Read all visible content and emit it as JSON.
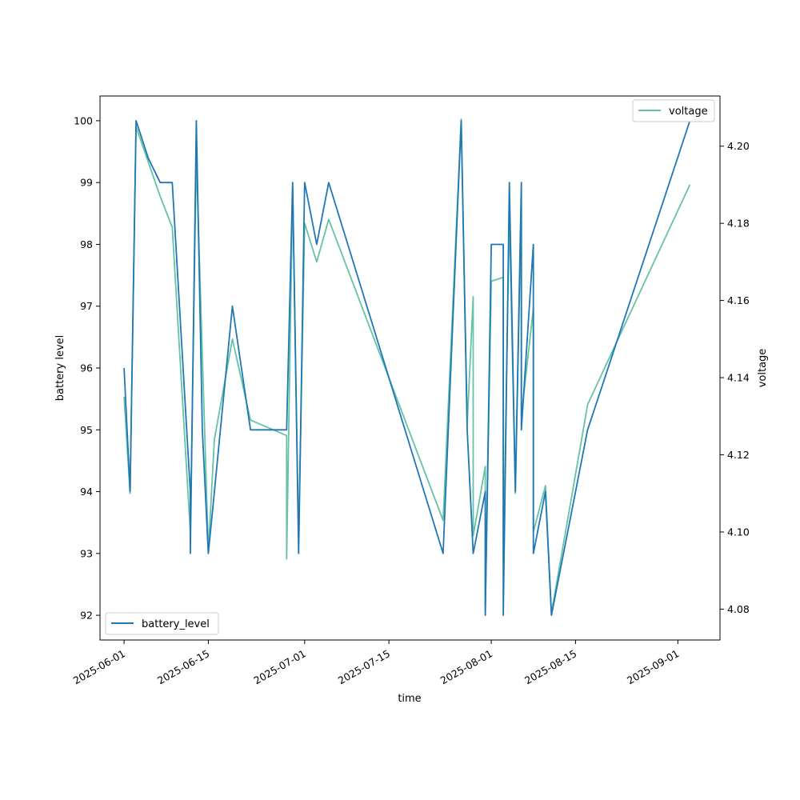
{
  "chart_data": {
    "type": "line",
    "xlabel": "time",
    "ylabel_left": "battery level",
    "ylabel_right": "voltage",
    "x_ticks": [
      "2025-06-01",
      "2025-06-15",
      "2025-07-01",
      "2025-07-15",
      "2025-08-01",
      "2025-08-15",
      "2025-09-01"
    ],
    "y_left_ticks": [
      92,
      93,
      94,
      95,
      96,
      97,
      98,
      99,
      100
    ],
    "y_right_ticks": [
      "4.08",
      "4.10",
      "4.12",
      "4.14",
      "4.16",
      "4.18",
      "4.20"
    ],
    "y_left_range": [
      91.6,
      100.4
    ],
    "y_right_range": [
      4.072,
      4.213
    ],
    "x_range": [
      "2025-05-28",
      "2025-09-08"
    ],
    "grid": false,
    "series": [
      {
        "name": "battery_level",
        "axis": "left",
        "color": "#1f77b4",
        "legend_position": "lower-left",
        "points": [
          [
            "2025-06-01",
            96
          ],
          [
            "2025-06-02",
            94
          ],
          [
            "2025-06-03",
            100
          ],
          [
            "2025-06-05",
            99.4
          ],
          [
            "2025-06-07",
            99
          ],
          [
            "2025-06-09",
            99
          ],
          [
            "2025-06-12",
            94
          ],
          [
            "2025-06-12",
            93
          ],
          [
            "2025-06-13",
            100
          ],
          [
            "2025-06-14",
            95
          ],
          [
            "2025-06-15",
            93
          ],
          [
            "2025-06-16",
            94
          ],
          [
            "2025-06-19",
            97
          ],
          [
            "2025-06-22",
            95
          ],
          [
            "2025-06-27",
            95
          ],
          [
            "2025-06-28",
            95
          ],
          [
            "2025-06-29",
            99
          ],
          [
            "2025-06-30",
            93
          ],
          [
            "2025-07-01",
            99
          ],
          [
            "2025-07-03",
            98
          ],
          [
            "2025-07-05",
            99
          ],
          [
            "2025-07-24",
            93
          ],
          [
            "2025-07-27",
            100
          ],
          [
            "2025-07-28",
            95
          ],
          [
            "2025-07-29",
            93
          ],
          [
            "2025-07-31",
            94
          ],
          [
            "2025-07-31",
            92
          ],
          [
            "2025-08-01",
            98
          ],
          [
            "2025-08-03",
            98
          ],
          [
            "2025-08-03",
            92
          ],
          [
            "2025-08-04",
            99
          ],
          [
            "2025-08-05",
            94
          ],
          [
            "2025-08-06",
            99
          ],
          [
            "2025-08-06",
            95
          ],
          [
            "2025-08-08",
            98
          ],
          [
            "2025-08-08",
            93
          ],
          [
            "2025-08-10",
            94
          ],
          [
            "2025-08-11",
            92
          ],
          [
            "2025-08-17",
            95
          ],
          [
            "2025-09-03",
            100
          ]
        ]
      },
      {
        "name": "voltage",
        "axis": "right",
        "color": "#66c2a5",
        "legend_position": "upper-right",
        "points": [
          [
            "2025-06-01",
            4.135
          ],
          [
            "2025-06-02",
            4.11
          ],
          [
            "2025-06-03",
            4.205
          ],
          [
            "2025-06-07",
            4.187
          ],
          [
            "2025-06-09",
            4.179
          ],
          [
            "2025-06-12",
            4.1
          ],
          [
            "2025-06-13",
            4.197
          ],
          [
            "2025-06-15",
            4.095
          ],
          [
            "2025-06-16",
            4.124
          ],
          [
            "2025-06-19",
            4.15
          ],
          [
            "2025-06-22",
            4.129
          ],
          [
            "2025-06-28",
            4.125
          ],
          [
            "2025-06-28",
            4.093
          ],
          [
            "2025-06-29",
            4.189
          ],
          [
            "2025-06-30",
            4.098
          ],
          [
            "2025-07-01",
            4.18
          ],
          [
            "2025-07-03",
            4.17
          ],
          [
            "2025-07-05",
            4.181
          ],
          [
            "2025-07-24",
            4.103
          ],
          [
            "2025-07-27",
            4.207
          ],
          [
            "2025-07-28",
            4.128
          ],
          [
            "2025-07-29",
            4.161
          ],
          [
            "2025-07-29",
            4.099
          ],
          [
            "2025-07-31",
            4.117
          ],
          [
            "2025-07-31",
            4.079
          ],
          [
            "2025-08-01",
            4.165
          ],
          [
            "2025-08-03",
            4.166
          ],
          [
            "2025-08-03",
            4.092
          ],
          [
            "2025-08-04",
            4.182
          ],
          [
            "2025-08-05",
            4.11
          ],
          [
            "2025-08-06",
            4.185
          ],
          [
            "2025-08-06",
            4.13
          ],
          [
            "2025-08-08",
            4.158
          ],
          [
            "2025-08-08",
            4.1
          ],
          [
            "2025-08-10",
            4.112
          ],
          [
            "2025-08-11",
            4.079
          ],
          [
            "2025-08-17",
            4.133
          ],
          [
            "2025-09-03",
            4.19
          ]
        ]
      }
    ]
  }
}
